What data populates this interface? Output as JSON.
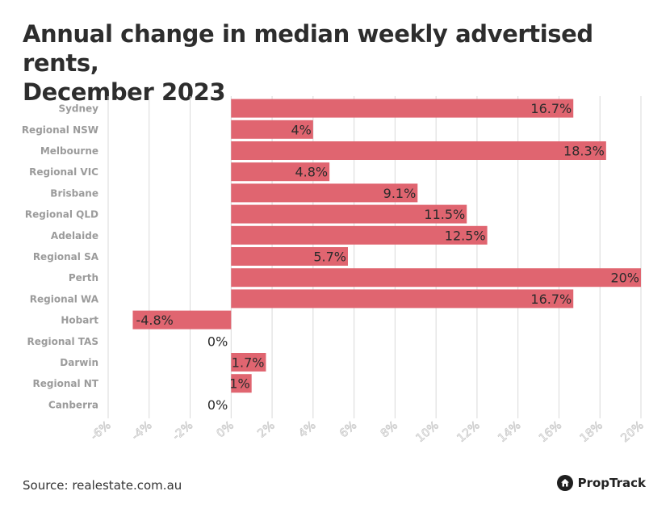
{
  "header": {
    "title_line1": "Annual change in median weekly advertised rents,",
    "title_line2": "December 2023"
  },
  "footer": {
    "source": "Source: realestate.com.au",
    "brand": "PropTrack",
    "brand_icon": "house-icon"
  },
  "chart_data": {
    "type": "bar",
    "orientation": "horizontal",
    "title": "Annual change in median weekly advertised rents, December 2023",
    "xlabel": "",
    "ylabel": "",
    "grid": true,
    "bar_color": "#e06570",
    "value_suffix": "%",
    "xlim": [
      -6,
      20
    ],
    "x_ticks": [
      -6,
      -4,
      -2,
      0,
      2,
      4,
      6,
      8,
      10,
      12,
      14,
      16,
      18,
      20
    ],
    "x_tick_labels": [
      "-6%",
      "-4%",
      "-2%",
      "0%",
      "2%",
      "4%",
      "6%",
      "8%",
      "10%",
      "12%",
      "14%",
      "16%",
      "18%",
      "20%"
    ],
    "categories": [
      "Sydney",
      "Regional NSW",
      "Melbourne",
      "Regional VIC",
      "Brisbane",
      "Regional QLD",
      "Adelaide",
      "Regional SA",
      "Perth",
      "Regional WA",
      "Hobart",
      "Regional TAS",
      "Darwin",
      "Regional NT",
      "Canberra"
    ],
    "values": [
      16.7,
      4,
      18.3,
      4.8,
      9.1,
      11.5,
      12.5,
      5.7,
      20,
      16.7,
      -4.8,
      0,
      1.7,
      1,
      0
    ],
    "value_labels": [
      "16.7%",
      "4%",
      "18.3%",
      "4.8%",
      "9.1%",
      "11.5%",
      "12.5%",
      "5.7%",
      "20%",
      "16.7%",
      "-4.8%",
      "0%",
      "1.7%",
      "1%",
      "0%"
    ]
  }
}
